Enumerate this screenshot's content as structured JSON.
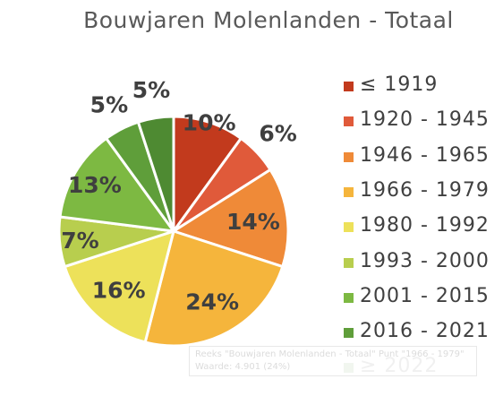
{
  "chart_data": {
    "type": "pie",
    "title": "Bouwjaren Molenlanden - Totaal",
    "slices": [
      {
        "label": "≤ 1919",
        "value": 10,
        "display": "10%",
        "color": "#c23a1d"
      },
      {
        "label": "1920 - 1945",
        "value": 6,
        "display": "6%",
        "color": "#e05a3a"
      },
      {
        "label": "1946 - 1965",
        "value": 14,
        "display": "14%",
        "color": "#ef8a38"
      },
      {
        "label": "1966 - 1979",
        "value": 24,
        "display": "24%",
        "color": "#f5b53c"
      },
      {
        "label": "1980 - 1992",
        "value": 16,
        "display": "16%",
        "color": "#ede15a"
      },
      {
        "label": "1993 - 2000",
        "value": 7,
        "display": "7%",
        "color": "#b8ce4e"
      },
      {
        "label": "2001 - 2015",
        "value": 13,
        "display": "13%",
        "color": "#7db942"
      },
      {
        "label": "2016 - 2021",
        "value": 5,
        "display": "5%",
        "color": "#5f9e3a"
      },
      {
        "label": "≥ 2022",
        "value": 5,
        "display": "5%",
        "color": "#4e8a32"
      }
    ],
    "legend_position": "right",
    "label_color": "#3f3f3f"
  },
  "tooltip": {
    "line1": "Reeks \"Bouwjaren Molenlanden - Totaal\" Punt \"1966 - 1979\"",
    "line2": "Waarde: 4.901 (24%)"
  }
}
